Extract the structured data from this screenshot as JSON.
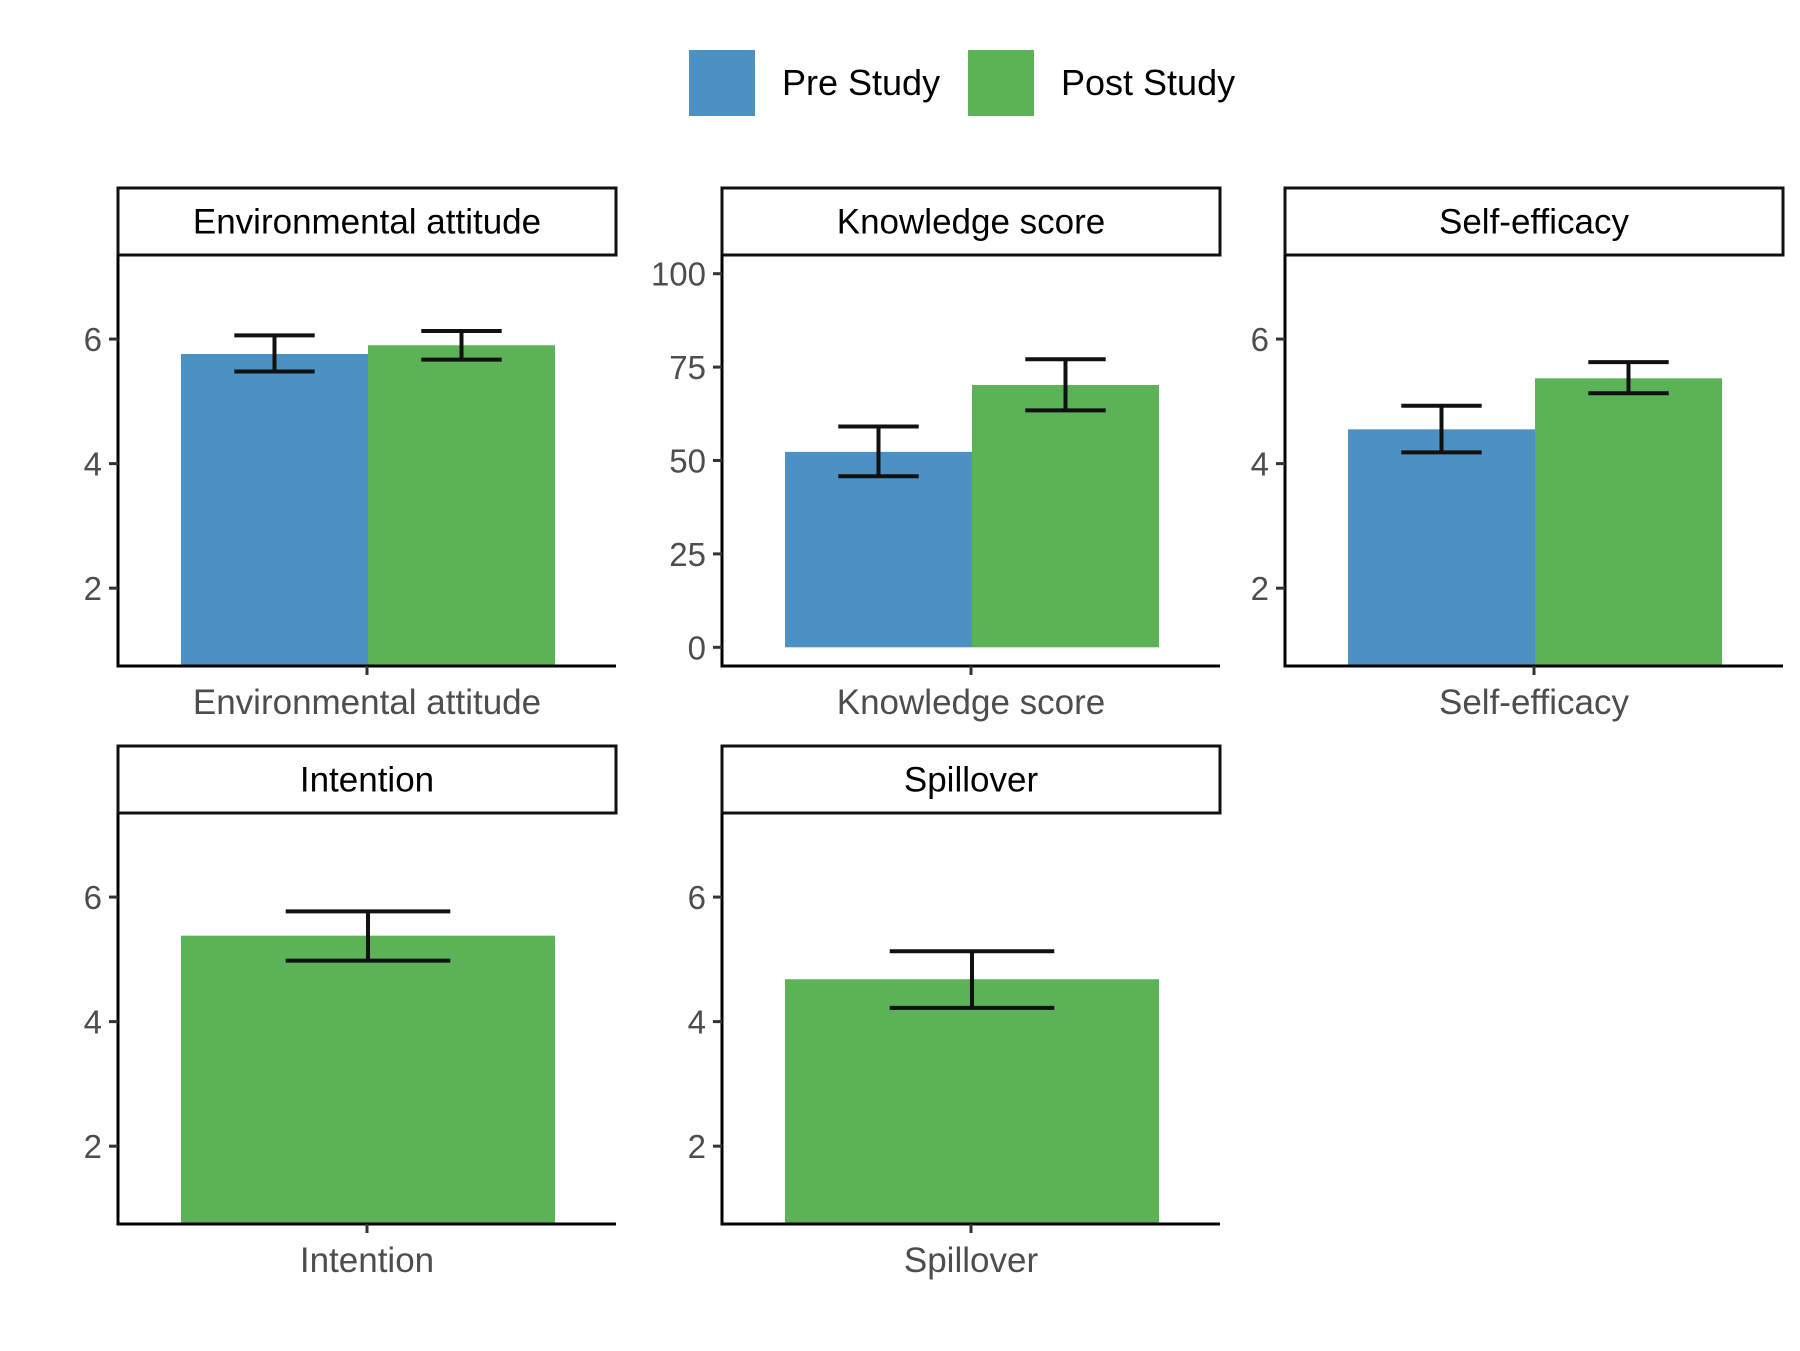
{
  "colors": {
    "pre": "#4b91c3",
    "post": "#5bb257",
    "axis": "#000000",
    "errorbar": "#111111"
  },
  "legend": [
    {
      "label": "Pre Study",
      "color": "#4b91c3"
    },
    {
      "label": "Post Study",
      "color": "#5bb257"
    }
  ],
  "chart_data": {
    "type": "bar",
    "legend_position": "top",
    "grid": false,
    "series": [
      {
        "name": "Pre Study",
        "color": "#4b91c3"
      },
      {
        "name": "Post Study",
        "color": "#5bb257"
      }
    ],
    "panels": [
      {
        "title": "Environmental attitude",
        "category": "Environmental attitude",
        "ylim": [
          0.75,
          7.35
        ],
        "yticks": [
          2,
          4,
          6
        ],
        "bars": [
          {
            "series": "Pre Study",
            "value": 5.76,
            "error": [
              5.48,
              6.06
            ]
          },
          {
            "series": "Post Study",
            "value": 5.9,
            "error": [
              5.67,
              6.13
            ]
          }
        ]
      },
      {
        "title": "Knowledge score",
        "category": "Knowledge score",
        "ylim": [
          -5,
          105
        ],
        "yticks": [
          0,
          25,
          50,
          75,
          100
        ],
        "bars": [
          {
            "series": "Pre Study",
            "value": 52.3,
            "error": [
              45.8,
              59.1
            ]
          },
          {
            "series": "Post Study",
            "value": 70.2,
            "error": [
              63.4,
              77.1
            ]
          }
        ]
      },
      {
        "title": "Self-efficacy",
        "category": "Self-efficacy",
        "ylim": [
          0.75,
          7.35
        ],
        "yticks": [
          2,
          4,
          6
        ],
        "bars": [
          {
            "series": "Pre Study",
            "value": 4.55,
            "error": [
              4.18,
              4.93
            ]
          },
          {
            "series": "Post Study",
            "value": 5.37,
            "error": [
              5.13,
              5.63
            ]
          }
        ]
      },
      {
        "title": "Intention",
        "category": "Intention",
        "ylim": [
          0.75,
          7.35
        ],
        "yticks": [
          2,
          4,
          6
        ],
        "bars": [
          {
            "series": "Post Study",
            "value": 5.38,
            "error": [
              4.98,
              5.77
            ]
          }
        ]
      },
      {
        "title": "Spillover",
        "category": "Spillover",
        "ylim": [
          0.75,
          7.35
        ],
        "yticks": [
          2,
          4,
          6
        ],
        "bars": [
          {
            "series": "Post Study",
            "value": 4.68,
            "error": [
              4.22,
              5.13
            ]
          }
        ]
      }
    ]
  }
}
